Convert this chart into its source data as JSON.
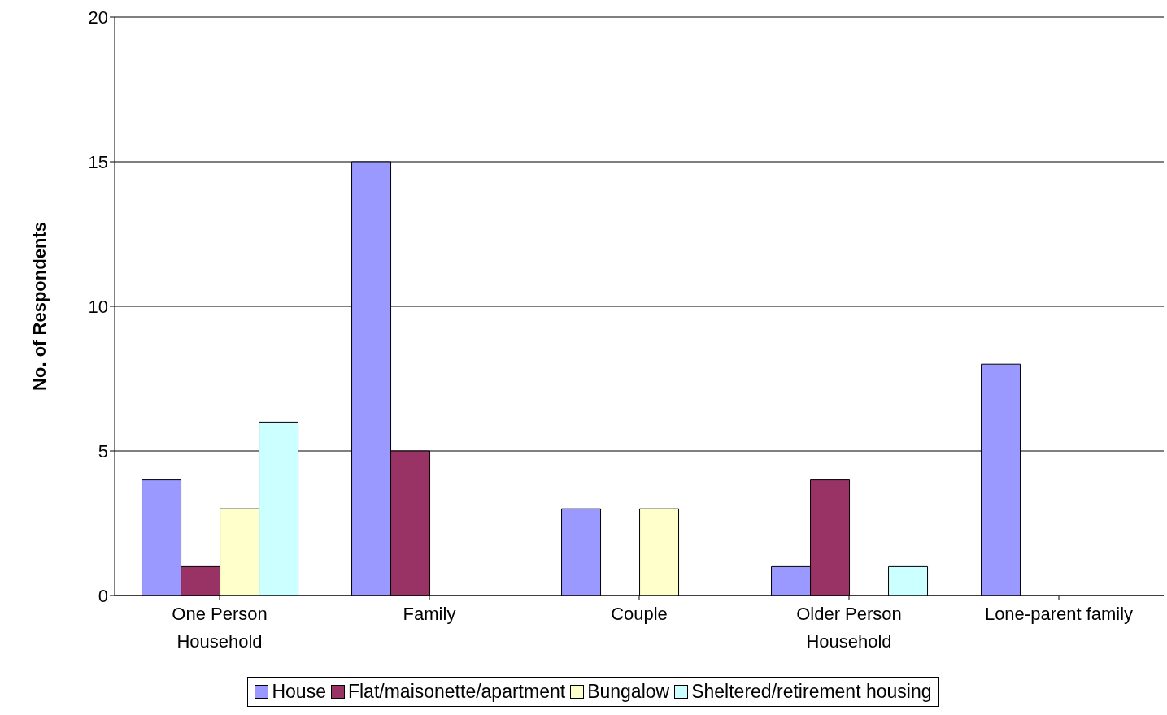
{
  "chart_data": {
    "type": "bar",
    "ylabel": "No. of Respondents",
    "categories": [
      "One Person Household",
      "Family",
      "Couple",
      "Older Person Household",
      "Lone-parent family"
    ],
    "series": [
      {
        "name": "House",
        "color": "#9999ff",
        "values": [
          4,
          15,
          3,
          1,
          8
        ]
      },
      {
        "name": "Flat/maisonette/apartment",
        "color": "#993366",
        "values": [
          1,
          5,
          0,
          4,
          0
        ]
      },
      {
        "name": "Bungalow",
        "color": "#ffffcc",
        "values": [
          3,
          0,
          3,
          0,
          0
        ]
      },
      {
        "name": "Sheltered/retirement housing",
        "color": "#ccffff",
        "values": [
          6,
          0,
          0,
          1,
          0
        ]
      }
    ],
    "ylim": [
      0,
      20
    ],
    "yticks": [
      0,
      5,
      10,
      15,
      20
    ],
    "grid": "y",
    "legend": "bottom"
  }
}
